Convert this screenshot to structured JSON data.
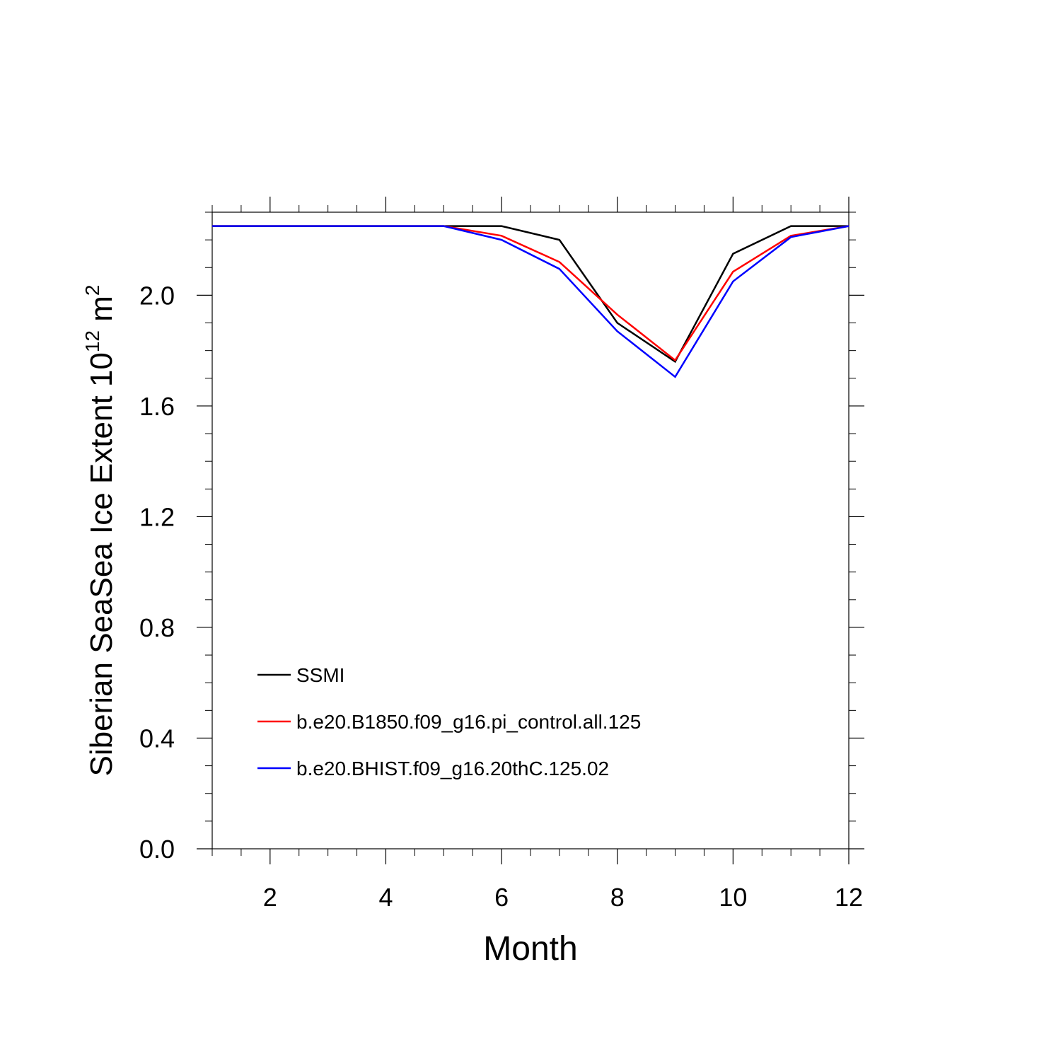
{
  "chart_data": {
    "type": "line",
    "xlabel": "Month",
    "ylabel": {
      "text": "Siberian SeaSea Ice Extent 10",
      "exponent": "12",
      "unit": "m",
      "unit_exponent": "2"
    },
    "xlim": [
      1,
      12
    ],
    "ylim": [
      0.0,
      2.3
    ],
    "x_ticks": [
      2,
      4,
      6,
      8,
      10,
      12
    ],
    "x_tick_labels": [
      "2",
      "4",
      "6",
      "8",
      "10",
      "12"
    ],
    "y_ticks": [
      0.0,
      0.4,
      0.8,
      1.2,
      1.6,
      2.0
    ],
    "y_tick_labels": [
      "0.0",
      "0.4",
      "0.8",
      "1.2",
      "1.6",
      "2.0"
    ],
    "x": [
      1,
      2,
      3,
      4,
      5,
      6,
      7,
      8,
      9,
      10,
      11,
      12
    ],
    "legend_position": "lower-left",
    "grid": false,
    "series": [
      {
        "name": "SSMI",
        "color": "#000000",
        "values": [
          2.25,
          2.25,
          2.25,
          2.25,
          2.25,
          2.25,
          2.2,
          1.9,
          1.76,
          2.15,
          2.25,
          2.25
        ]
      },
      {
        "name": "b.e20.B1850.f09_g16.pi_control.all.125",
        "color": "#ff0000",
        "values": [
          2.25,
          2.25,
          2.25,
          2.25,
          2.25,
          2.215,
          2.12,
          1.93,
          1.765,
          2.085,
          2.215,
          2.25
        ]
      },
      {
        "name": "b.e20.BHIST.f09_g16.20thC.125.02",
        "color": "#0000ff",
        "values": [
          2.25,
          2.25,
          2.25,
          2.25,
          2.25,
          2.2,
          2.095,
          1.87,
          1.705,
          2.05,
          2.21,
          2.25
        ]
      }
    ]
  }
}
